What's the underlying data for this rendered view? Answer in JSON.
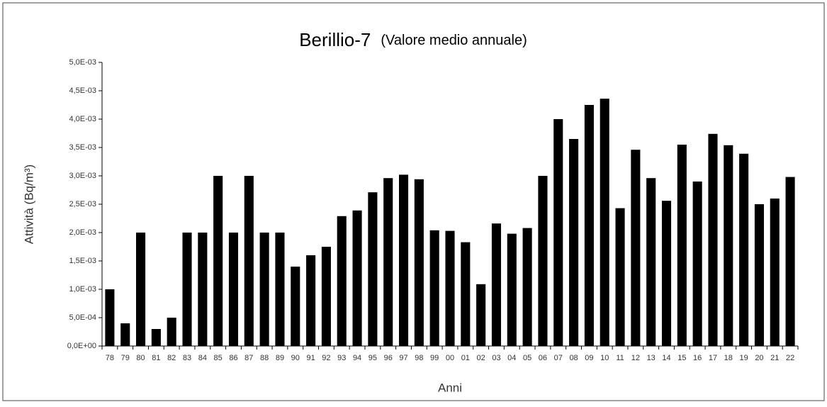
{
  "chart_data": {
    "type": "bar",
    "title": "Berillio-7",
    "subtitle": "(Valore medio annuale)",
    "x_label": "Anni",
    "y_label": "Attività (Bq/m³)",
    "color": "#000000",
    "categories": [
      "78",
      "79",
      "80",
      "81",
      "82",
      "83",
      "84",
      "85",
      "86",
      "87",
      "88",
      "89",
      "90",
      "91",
      "92",
      "93",
      "94",
      "95",
      "96",
      "97",
      "98",
      "99",
      "00",
      "01",
      "02",
      "03",
      "04",
      "05",
      "06",
      "07",
      "08",
      "09",
      "10",
      "11",
      "12",
      "13",
      "14",
      "15",
      "16",
      "17",
      "18",
      "19",
      "20",
      "21",
      "22"
    ],
    "values": [
      0.001,
      0.0004,
      0.002,
      0.0003,
      0.0005,
      0.002,
      0.002,
      0.003,
      0.002,
      0.003,
      0.002,
      0.002,
      0.0014,
      0.0016,
      0.00175,
      0.00229,
      0.00239,
      0.00271,
      0.00296,
      0.00302,
      0.00294,
      0.00204,
      0.00203,
      0.00183,
      0.00109,
      0.00216,
      0.00198,
      0.00208,
      0.003,
      0.004,
      0.00365,
      0.00425,
      0.00436,
      0.00243,
      0.00346,
      0.00296,
      0.00256,
      0.00355,
      0.0029,
      0.00374,
      0.00354,
      0.00339,
      0.0025,
      0.0026,
      0.00298
    ],
    "ylim": [
      0,
      0.005
    ],
    "yticks": [
      {
        "value": 0,
        "label": "0,0E+00"
      },
      {
        "value": 0.0005,
        "label": "5,0E-04"
      },
      {
        "value": 0.001,
        "label": "1,0E-03"
      },
      {
        "value": 0.0015,
        "label": "1,5E-03"
      },
      {
        "value": 0.002,
        "label": "2,0E-03"
      },
      {
        "value": 0.0025,
        "label": "2,5E-03"
      },
      {
        "value": 0.003,
        "label": "3,0E-03"
      },
      {
        "value": 0.0035,
        "label": "3,5E-03"
      },
      {
        "value": 0.004,
        "label": "4,0E-03"
      },
      {
        "value": 0.0045,
        "label": "4,5E-03"
      },
      {
        "value": 0.005,
        "label": "5,0E-03"
      }
    ],
    "grid": false
  }
}
